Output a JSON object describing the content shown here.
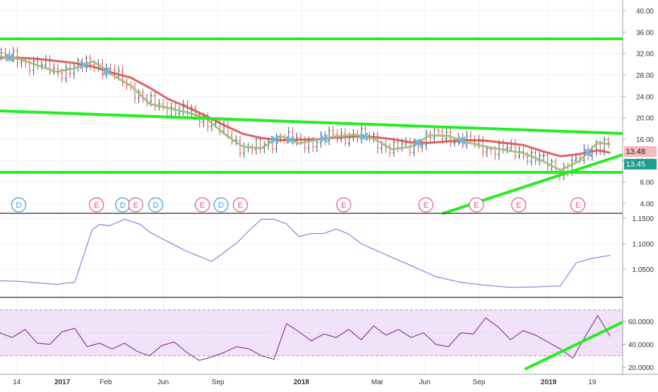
{
  "colors": {
    "background": "#ffffff",
    "grid": "#eef1f5",
    "axis_text": "#333333",
    "bull_bar": "#2f4f6f",
    "bear_bar": "#e24a4a",
    "ma_slow": "#d9534f",
    "ma_fast": "#9fbf7a",
    "trendline": "#22ee22",
    "vol_line": "#6a6adf",
    "rsi_line": "#7b1f7b",
    "rsi_band": "#f0e2f7",
    "rsi_band_border": "#b38ad8",
    "badge_dividend": "#3a9ad9",
    "badge_earnings": "#e05a7a",
    "last_price_tag": "#f5b9c0",
    "last_close_tag": "#1f9e8e",
    "crossover_marker": "#66b8e8"
  },
  "chart_data": [
    {
      "panel": "price",
      "type": "line",
      "y_ticks": [
        "40.00",
        "36.00",
        "32.00",
        "28.00",
        "24.00",
        "20.00",
        "16.00",
        "12.00",
        "8.00",
        "4.00"
      ],
      "ylim": [
        2.0,
        42.0
      ],
      "x_range": [
        0,
        1000
      ],
      "series": [
        {
          "key": "ma_slow",
          "x": [
            0,
            30,
            60,
            90,
            120,
            150,
            180,
            210,
            240,
            270,
            300,
            330,
            360,
            390,
            420,
            450,
            480,
            510,
            540,
            570,
            600,
            630,
            660,
            690,
            720,
            750,
            780,
            810,
            840,
            870,
            900,
            930,
            960,
            980
          ],
          "y": [
            31.2,
            31.2,
            31.0,
            30.6,
            30.2,
            29.5,
            28.4,
            27.5,
            25.6,
            23.5,
            22.0,
            20.4,
            18.6,
            17.0,
            16.2,
            15.8,
            15.9,
            16.0,
            16.3,
            16.5,
            16.4,
            16.0,
            15.4,
            15.3,
            15.6,
            15.8,
            15.7,
            15.3,
            14.9,
            13.8,
            12.8,
            13.2,
            13.9,
            13.48
          ]
        },
        {
          "key": "ma_fast",
          "x": [
            0,
            30,
            60,
            90,
            120,
            150,
            180,
            210,
            240,
            270,
            300,
            330,
            360,
            390,
            420,
            450,
            480,
            510,
            540,
            570,
            600,
            630,
            660,
            690,
            720,
            750,
            780,
            810,
            840,
            870,
            900,
            930,
            960,
            980
          ],
          "y": [
            31.4,
            31.0,
            29.8,
            28.6,
            29.2,
            30.5,
            28.0,
            26.0,
            22.6,
            21.8,
            21.0,
            20.0,
            17.0,
            14.6,
            14.3,
            16.6,
            15.2,
            15.9,
            16.5,
            16.8,
            16.1,
            14.1,
            14.6,
            16.7,
            16.6,
            15.4,
            14.6,
            14.0,
            13.4,
            12.0,
            10.2,
            11.9,
            15.4,
            15.0
          ]
        }
      ],
      "last_price": "13.48",
      "last_close": "13.45",
      "events": [
        {
          "x": 30,
          "label": "D"
        },
        {
          "x": 155,
          "label": "E"
        },
        {
          "x": 197,
          "label": "D"
        },
        {
          "x": 218,
          "label": "E"
        },
        {
          "x": 250,
          "label": "D"
        },
        {
          "x": 325,
          "label": "E"
        },
        {
          "x": 355,
          "label": "D"
        },
        {
          "x": 386,
          "label": "E"
        },
        {
          "x": 552,
          "label": "E"
        },
        {
          "x": 684,
          "label": "E"
        },
        {
          "x": 765,
          "label": "E"
        },
        {
          "x": 833,
          "label": "E"
        },
        {
          "x": 928,
          "label": "E"
        }
      ]
    },
    {
      "panel": "volatility",
      "type": "line",
      "y_ticks": [
        "1.1500",
        "1.1000",
        "1.0500"
      ],
      "ylim": [
        1.005,
        1.152
      ],
      "x": [
        0,
        30,
        60,
        90,
        120,
        148,
        160,
        175,
        200,
        225,
        240,
        260,
        300,
        340,
        380,
        400,
        420,
        440,
        460,
        480,
        500,
        520,
        540,
        560,
        580,
        620,
        660,
        700,
        740,
        780,
        820,
        860,
        900,
        925,
        950,
        980
      ],
      "y": [
        1.027,
        1.026,
        1.023,
        1.02,
        1.024,
        1.127,
        1.138,
        1.135,
        1.148,
        1.138,
        1.123,
        1.11,
        1.085,
        1.065,
        1.101,
        1.126,
        1.148,
        1.148,
        1.139,
        1.114,
        1.12,
        1.12,
        1.129,
        1.119,
        1.1,
        1.078,
        1.057,
        1.035,
        1.024,
        1.018,
        1.014,
        1.015,
        1.017,
        1.062,
        1.071,
        1.077
      ]
    },
    {
      "panel": "rsi",
      "type": "line",
      "y_ticks": [
        "60.0000",
        "40.0000",
        "20.0000"
      ],
      "ylim": [
        18.0,
        75.0
      ],
      "band": [
        30,
        70
      ],
      "x": [
        0,
        20,
        40,
        60,
        80,
        100,
        120,
        140,
        160,
        180,
        200,
        220,
        240,
        260,
        280,
        300,
        320,
        340,
        360,
        380,
        400,
        420,
        440,
        460,
        480,
        500,
        520,
        540,
        560,
        580,
        600,
        620,
        640,
        660,
        680,
        700,
        720,
        740,
        760,
        780,
        800,
        820,
        840,
        860,
        880,
        900,
        920,
        940,
        960,
        980
      ],
      "y": [
        50,
        46,
        53,
        41,
        40,
        51,
        54,
        38,
        41,
        36,
        41,
        34,
        30,
        39,
        42,
        33,
        26,
        29,
        33,
        38,
        36,
        30,
        27,
        58,
        51,
        43,
        49,
        46,
        53,
        44,
        56,
        48,
        53,
        46,
        50,
        40,
        38,
        50,
        49,
        63,
        55,
        44,
        52,
        48,
        42,
        36,
        28,
        47,
        65,
        47
      ]
    }
  ],
  "x_axis": {
    "labels": [
      {
        "x": 27,
        "text": "14"
      },
      {
        "x": 100,
        "text": "2017"
      },
      {
        "x": 170,
        "text": "Feb"
      },
      {
        "x": 262,
        "text": "Jun"
      },
      {
        "x": 350,
        "text": "Sep"
      },
      {
        "x": 484,
        "text": "2018"
      },
      {
        "x": 606,
        "text": "Mar"
      },
      {
        "x": 682,
        "text": "Jun"
      },
      {
        "x": 769,
        "text": "Sep"
      },
      {
        "x": 881,
        "text": "2019"
      },
      {
        "x": 951,
        "text": "19"
      }
    ]
  }
}
